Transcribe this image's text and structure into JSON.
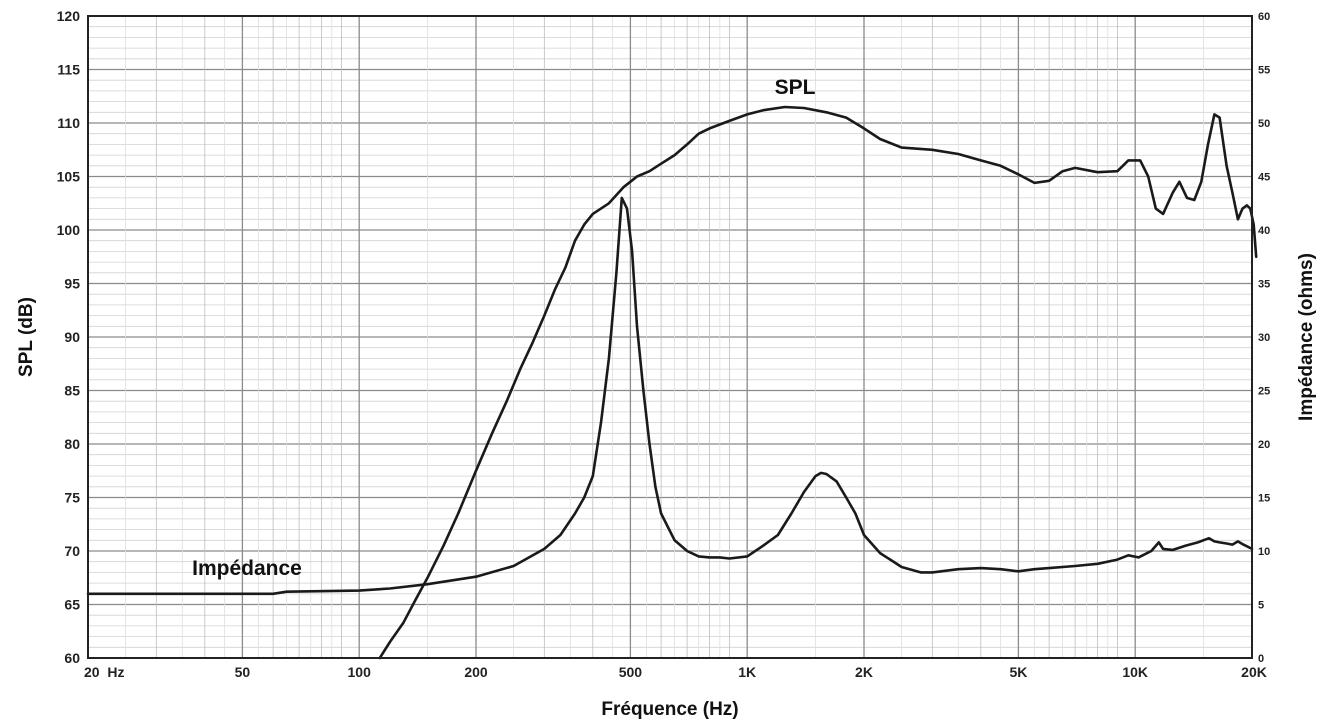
{
  "chart_data": {
    "type": "line",
    "xlabel": "Fréquence (Hz)",
    "ylabel": "SPL (dB)",
    "y2label": "Impédance (ohms)",
    "x_scale": "log",
    "xlim": [
      20,
      20000
    ],
    "ylim": [
      60,
      120
    ],
    "y2lim": [
      0,
      60
    ],
    "grid": true,
    "x_ticks": [
      {
        "value": 20,
        "label": "20  Hz"
      },
      {
        "value": 50,
        "label": "50"
      },
      {
        "value": 100,
        "label": "100"
      },
      {
        "value": 200,
        "label": "200"
      },
      {
        "value": 500,
        "label": "500"
      },
      {
        "value": 1000,
        "label": "1K"
      },
      {
        "value": 2000,
        "label": "2K"
      },
      {
        "value": 5000,
        "label": "5K"
      },
      {
        "value": 10000,
        "label": "10K"
      },
      {
        "value": 20000,
        "label": "20K"
      }
    ],
    "y_ticks": [
      "60",
      "65",
      "70",
      "75",
      "80",
      "85",
      "90",
      "95",
      "100",
      "105",
      "110",
      "115",
      "120"
    ],
    "y2_ticks": [
      "0",
      "5",
      "10",
      "15",
      "20",
      "25",
      "30",
      "35",
      "40",
      "45",
      "50",
      "55",
      "60"
    ],
    "series": [
      {
        "name": "SPL",
        "axis": "left",
        "points": [
          [
            113,
            60
          ],
          [
            120,
            61.5
          ],
          [
            130,
            63.3
          ],
          [
            140,
            65.5
          ],
          [
            150,
            67.5
          ],
          [
            165,
            70.5
          ],
          [
            180,
            73.5
          ],
          [
            200,
            77.5
          ],
          [
            220,
            81
          ],
          [
            240,
            84
          ],
          [
            260,
            87
          ],
          [
            280,
            89.5
          ],
          [
            300,
            92
          ],
          [
            320,
            94.5
          ],
          [
            340,
            96.5
          ],
          [
            360,
            99
          ],
          [
            380,
            100.5
          ],
          [
            400,
            101.5
          ],
          [
            440,
            102.5
          ],
          [
            480,
            104
          ],
          [
            520,
            105
          ],
          [
            560,
            105.5
          ],
          [
            600,
            106.2
          ],
          [
            650,
            107
          ],
          [
            700,
            108
          ],
          [
            750,
            109
          ],
          [
            800,
            109.5
          ],
          [
            900,
            110.2
          ],
          [
            1000,
            110.8
          ],
          [
            1100,
            111.2
          ],
          [
            1250,
            111.5
          ],
          [
            1400,
            111.4
          ],
          [
            1600,
            111
          ],
          [
            1800,
            110.5
          ],
          [
            2000,
            109.5
          ],
          [
            2200,
            108.5
          ],
          [
            2500,
            107.7
          ],
          [
            3000,
            107.5
          ],
          [
            3500,
            107.1
          ],
          [
            4000,
            106.5
          ],
          [
            4500,
            106
          ],
          [
            5000,
            105.2
          ],
          [
            5500,
            104.4
          ],
          [
            6000,
            104.6
          ],
          [
            6500,
            105.5
          ],
          [
            7000,
            105.8
          ],
          [
            8000,
            105.4
          ],
          [
            9000,
            105.5
          ],
          [
            9600,
            106.5
          ],
          [
            10300,
            106.5
          ],
          [
            10800,
            105
          ],
          [
            11300,
            102
          ],
          [
            11800,
            101.5
          ],
          [
            12500,
            103.5
          ],
          [
            13000,
            104.5
          ],
          [
            13600,
            103
          ],
          [
            14200,
            102.8
          ],
          [
            14800,
            104.5
          ],
          [
            15400,
            108
          ],
          [
            16000,
            110.8
          ],
          [
            16500,
            110.5
          ],
          [
            17200,
            106
          ],
          [
            17800,
            103.5
          ],
          [
            18400,
            101
          ],
          [
            18900,
            102
          ],
          [
            19400,
            102.3
          ],
          [
            19800,
            102
          ],
          [
            20200,
            100.5
          ],
          [
            20500,
            97.5
          ]
        ]
      },
      {
        "name": "Impédance",
        "axis": "right",
        "points": [
          [
            20,
            6
          ],
          [
            60,
            6
          ],
          [
            65,
            6.2
          ],
          [
            100,
            6.3
          ],
          [
            120,
            6.5
          ],
          [
            150,
            6.9
          ],
          [
            200,
            7.6
          ],
          [
            250,
            8.6
          ],
          [
            300,
            10.2
          ],
          [
            330,
            11.5
          ],
          [
            360,
            13.5
          ],
          [
            380,
            15
          ],
          [
            400,
            17
          ],
          [
            420,
            22
          ],
          [
            440,
            28
          ],
          [
            460,
            36
          ],
          [
            475,
            43
          ],
          [
            490,
            42
          ],
          [
            505,
            38
          ],
          [
            520,
            31
          ],
          [
            540,
            25
          ],
          [
            560,
            20
          ],
          [
            580,
            16
          ],
          [
            600,
            13.5
          ],
          [
            650,
            11
          ],
          [
            700,
            10
          ],
          [
            750,
            9.5
          ],
          [
            800,
            9.4
          ],
          [
            850,
            9.4
          ],
          [
            900,
            9.3
          ],
          [
            1000,
            9.5
          ],
          [
            1100,
            10.5
          ],
          [
            1200,
            11.5
          ],
          [
            1300,
            13.5
          ],
          [
            1400,
            15.5
          ],
          [
            1500,
            17
          ],
          [
            1550,
            17.3
          ],
          [
            1600,
            17.2
          ],
          [
            1700,
            16.5
          ],
          [
            1800,
            15
          ],
          [
            1900,
            13.5
          ],
          [
            2000,
            11.5
          ],
          [
            2200,
            9.8
          ],
          [
            2500,
            8.5
          ],
          [
            2800,
            8
          ],
          [
            3000,
            8
          ],
          [
            3500,
            8.3
          ],
          [
            4000,
            8.4
          ],
          [
            4500,
            8.3
          ],
          [
            5000,
            8.1
          ],
          [
            5500,
            8.3
          ],
          [
            6000,
            8.4
          ],
          [
            7000,
            8.6
          ],
          [
            8000,
            8.8
          ],
          [
            9000,
            9.2
          ],
          [
            9600,
            9.6
          ],
          [
            10200,
            9.4
          ],
          [
            11000,
            10
          ],
          [
            11500,
            10.8
          ],
          [
            11800,
            10.2
          ],
          [
            12500,
            10.1
          ],
          [
            13500,
            10.5
          ],
          [
            14500,
            10.8
          ],
          [
            15500,
            11.2
          ],
          [
            16000,
            10.9
          ],
          [
            16500,
            10.8
          ],
          [
            17200,
            10.7
          ],
          [
            17800,
            10.6
          ],
          [
            18400,
            10.9
          ],
          [
            19000,
            10.6
          ],
          [
            19500,
            10.4
          ],
          [
            20000,
            10.2
          ]
        ]
      }
    ],
    "annotations": [
      {
        "text": "SPL",
        "series": "SPL"
      },
      {
        "text": "Impédance",
        "series": "Impédance"
      }
    ]
  }
}
